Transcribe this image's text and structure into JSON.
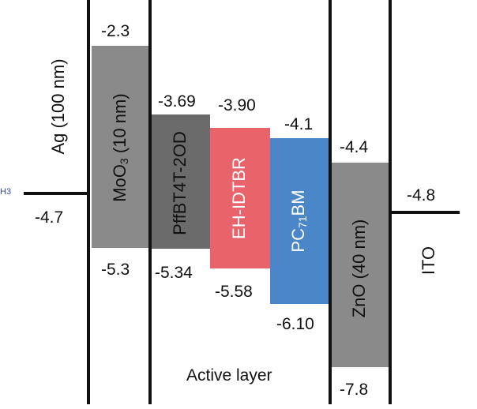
{
  "colors": {
    "moo3": "#8a8a8a",
    "donor": "#6b6b6b",
    "acceptor_red": "#e8636a",
    "acceptor_blue": "#4a86c8",
    "zno": "#8a8a8a",
    "line": "#111111",
    "white_text": "#ffffff",
    "dark_text": "#111111"
  },
  "corner_fragment": "H3",
  "ag": {
    "label": "Ag (100 nm)",
    "level": "-4.7"
  },
  "moo3": {
    "label_main": "MoO",
    "label_sub": "3",
    "label_rest": " (10 nm)",
    "top": "-2.3",
    "bottom": "-5.3"
  },
  "pffbt": {
    "label": "PffBT4T-2OD",
    "top": "-3.69",
    "bottom": "-5.34"
  },
  "ehidtbr": {
    "label": "EH-IDTBR",
    "top": "-3.90",
    "bottom": "-5.58"
  },
  "pcbm": {
    "label_pre": "PC",
    "label_sub": "71",
    "label_post": "BM",
    "top": "-4.1",
    "bottom": "-6.10"
  },
  "zno": {
    "label": "ZnO (40 nm)",
    "top": "-4.4",
    "bottom": "-7.8"
  },
  "ito": {
    "label": "ITO",
    "level": "-4.8"
  },
  "active_layer": "Active layer"
}
